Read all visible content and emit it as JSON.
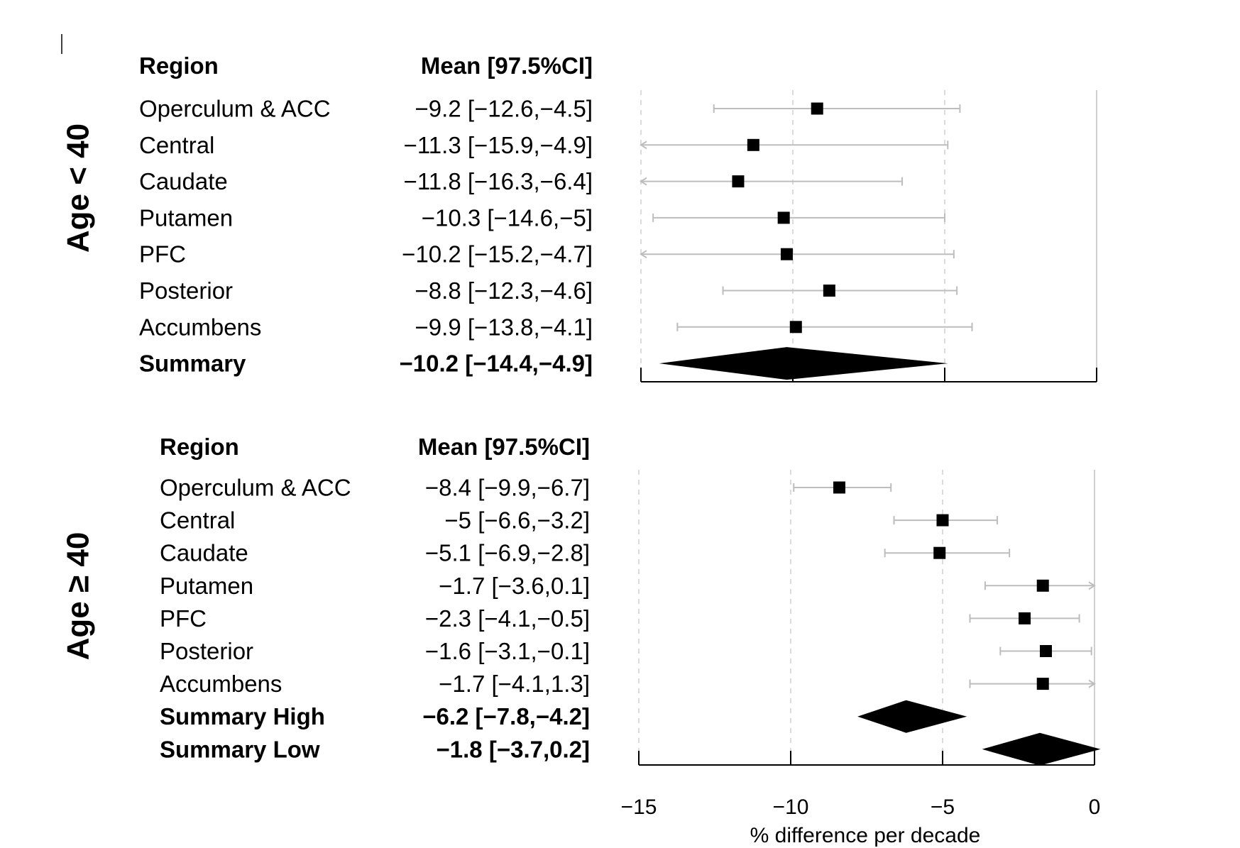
{
  "chart_data": {
    "type": "forest",
    "xlabel": "% difference per decade",
    "xlim": [
      -15,
      0
    ],
    "xticks": [
      -15,
      -10,
      -5,
      0
    ],
    "xtick_labels": [
      "−15",
      "−10",
      "−5",
      "0"
    ],
    "reference_lines": [
      -15,
      -10,
      -5
    ],
    "panels": [
      {
        "group_label": "Age < 40",
        "header_region": "Region",
        "header_mean": "Mean [97.5%CI]",
        "rows": [
          {
            "region": "Operculum & ACC",
            "label": "−9.2 [−12.6,−4.5]",
            "mean": -9.2,
            "lo": -12.6,
            "hi": -4.5
          },
          {
            "region": "Central",
            "label": "−11.3 [−15.9,−4.9]",
            "mean": -11.3,
            "lo": -15.9,
            "hi": -4.9
          },
          {
            "region": "Caudate",
            "label": "−11.8 [−16.3,−6.4]",
            "mean": -11.8,
            "lo": -16.3,
            "hi": -6.4
          },
          {
            "region": "Putamen",
            "label": "−10.3 [−14.6,−5]",
            "mean": -10.3,
            "lo": -14.6,
            "hi": -5.0
          },
          {
            "region": "PFC",
            "label": "−10.2 [−15.2,−4.7]",
            "mean": -10.2,
            "lo": -15.2,
            "hi": -4.7
          },
          {
            "region": "Posterior",
            "label": "−8.8 [−12.3,−4.6]",
            "mean": -8.8,
            "lo": -12.3,
            "hi": -4.6
          },
          {
            "region": "Accumbens",
            "label": "−9.9 [−13.8,−4.1]",
            "mean": -9.9,
            "lo": -13.8,
            "hi": -4.1
          }
        ],
        "summaries": [
          {
            "region": "Summary",
            "label": "−10.2 [−14.4,−4.9]",
            "mean": -10.2,
            "lo": -14.4,
            "hi": -4.9
          }
        ]
      },
      {
        "group_label": "Age ≥ 40",
        "header_region": "Region",
        "header_mean": "Mean [97.5%CI]",
        "rows": [
          {
            "region": "Operculum & ACC",
            "label": "−8.4 [−9.9,−6.7]",
            "mean": -8.4,
            "lo": -9.9,
            "hi": -6.7
          },
          {
            "region": "Central",
            "label": "−5 [−6.6,−3.2]",
            "mean": -5.0,
            "lo": -6.6,
            "hi": -3.2
          },
          {
            "region": "Caudate",
            "label": "−5.1 [−6.9,−2.8]",
            "mean": -5.1,
            "lo": -6.9,
            "hi": -2.8
          },
          {
            "region": "Putamen",
            "label": "−1.7 [−3.6,0.1]",
            "mean": -1.7,
            "lo": -3.6,
            "hi": 0.1
          },
          {
            "region": "PFC",
            "label": "−2.3 [−4.1,−0.5]",
            "mean": -2.3,
            "lo": -4.1,
            "hi": -0.5
          },
          {
            "region": "Posterior",
            "label": "−1.6 [−3.1,−0.1]",
            "mean": -1.6,
            "lo": -3.1,
            "hi": -0.1
          },
          {
            "region": "Accumbens",
            "label": "−1.7 [−4.1,1.3]",
            "mean": -1.7,
            "lo": -4.1,
            "hi": 1.3
          }
        ],
        "summaries": [
          {
            "region": "Summary High",
            "label": "−6.2 [−7.8,−4.2]",
            "mean": -6.2,
            "lo": -7.8,
            "hi": -4.2
          },
          {
            "region": "Summary Low",
            "label": "−1.8 [−3.7,0.2]",
            "mean": -1.8,
            "lo": -3.7,
            "hi": 0.2
          }
        ]
      }
    ]
  }
}
